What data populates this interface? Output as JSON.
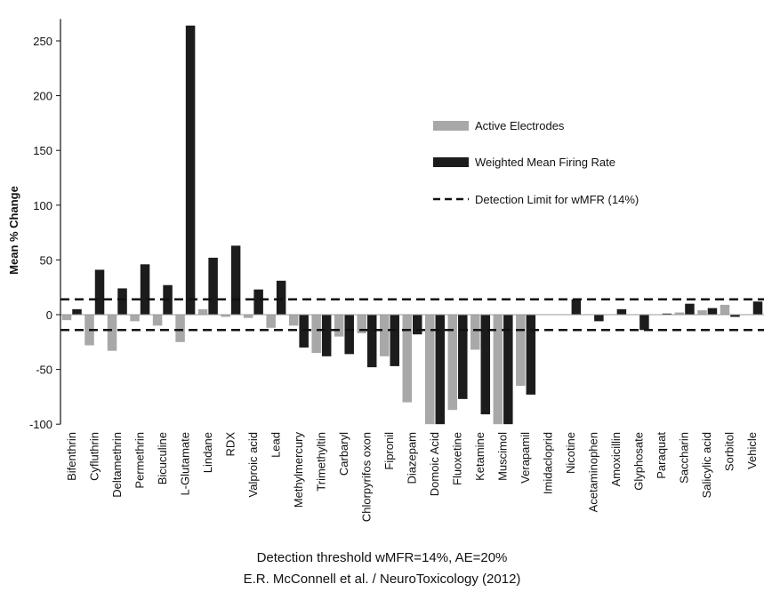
{
  "chart_data": {
    "type": "bar",
    "title": "",
    "xlabel": "",
    "ylabel": "Mean % Change",
    "ylim": [
      -100,
      270
    ],
    "yticks": [
      -100,
      -50,
      0,
      50,
      100,
      150,
      200,
      250
    ],
    "grid": false,
    "legend_position": "right-middle",
    "categories": [
      "Bifenthrin",
      "Cyfluthrin",
      "Deltamethrin",
      "Permethrin",
      "Bicuculine",
      "L-Glutamate",
      "Lindane",
      "RDX",
      "Valproic acid",
      "Lead",
      "Methylmercury",
      "Trimethyltin",
      "Carbaryl",
      "Chlorpyrifos oxon",
      "Fipronil",
      "Diazepam",
      "Domoic Acid",
      "Fluoxetine",
      "Ketamine",
      "Muscimol",
      "Verapamil",
      "Imidacloprid",
      "Nicotine",
      "Acetaminophen",
      "Amoxicillin",
      "Glyphosate",
      "Paraquat",
      "Saccharin",
      "Salicylic acid",
      "Sorbitol",
      "Vehicle"
    ],
    "series": [
      {
        "name": "Active Electrodes",
        "color": "#a8a8a8",
        "values": [
          -5,
          -28,
          -33,
          -6,
          -10,
          -25,
          5,
          -2,
          -3,
          -12,
          -10,
          -35,
          -20,
          -17,
          -38,
          -80,
          -100,
          -87,
          -32,
          -100,
          -65,
          0,
          0,
          0,
          0,
          0,
          0,
          2,
          4,
          9,
          0
        ]
      },
      {
        "name": "Weighted Mean Firing Rate",
        "color": "#1c1c1c",
        "values": [
          5,
          41,
          24,
          46,
          27,
          264,
          52,
          63,
          23,
          31,
          -30,
          -38,
          -36,
          -48,
          -47,
          -18,
          -100,
          -77,
          -91,
          -100,
          -73,
          0,
          14,
          -6,
          5,
          -14,
          1,
          10,
          6,
          -2,
          12
        ]
      }
    ],
    "detection_limit": {
      "name": "Detection Limit for wMFR (14%)",
      "values": [
        14,
        -14
      ]
    }
  },
  "captions": {
    "line1": "Detection threshold wMFR=14%, AE=20%",
    "line2": "E.R. McConnell et al. / NeuroToxicology (2012)"
  }
}
